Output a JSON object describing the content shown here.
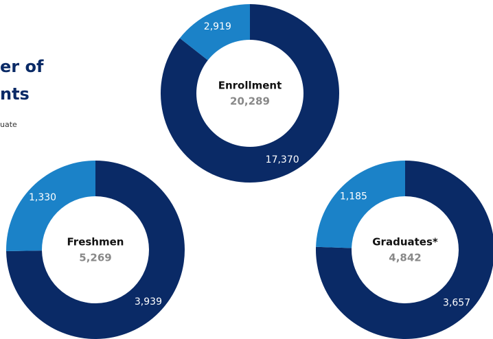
{
  "heading": {
    "title_lines": [
      "er of",
      "nts"
    ],
    "subtitle": "uate"
  },
  "chart_data": [
    {
      "type": "donut",
      "center_label": "Enrollment",
      "center_value": {
        "value": 20289,
        "label": "20,289"
      },
      "values": [
        17370,
        2919
      ],
      "value_labels": [
        "17,370",
        "2,919"
      ],
      "colors": [
        "#0a2a66",
        "#1b82c8"
      ]
    },
    {
      "type": "donut",
      "center_label": "Freshmen",
      "center_value": {
        "value": 5269,
        "label": "5,269"
      },
      "values": [
        3939,
        1330
      ],
      "value_labels": [
        "3,939",
        "1,330"
      ],
      "colors": [
        "#0a2a66",
        "#1b82c8"
      ]
    },
    {
      "type": "donut",
      "center_label": "Graduates*",
      "center_value": {
        "value": 4842,
        "label": "4,842"
      },
      "values": [
        3657,
        1185
      ],
      "value_labels": [
        "3,657",
        "1,185"
      ],
      "colors": [
        "#0a2a66",
        "#1b82c8"
      ]
    }
  ]
}
